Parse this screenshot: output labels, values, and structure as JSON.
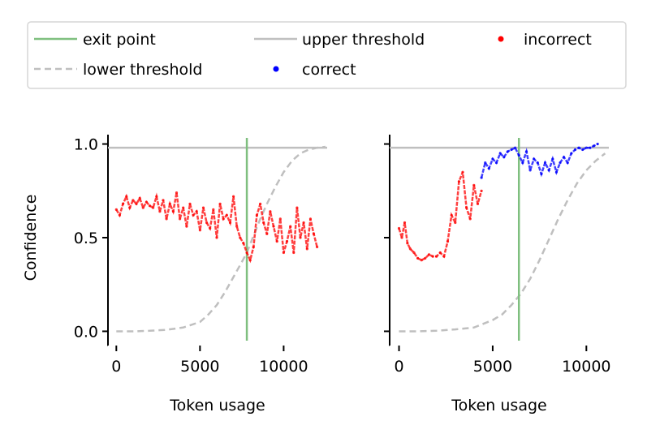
{
  "legend": {
    "entries": [
      {
        "key": "exit",
        "label": "exit point",
        "color": "#7fbf7f",
        "style": "line-solid"
      },
      {
        "key": "upper",
        "label": "upper threshold",
        "color": "#bfbfbf",
        "style": "line-solid"
      },
      {
        "key": "incorrect",
        "label": "incorrect",
        "color": "#ff0000",
        "style": "dot"
      },
      {
        "key": "lower",
        "label": "lower threshold",
        "color": "#bfbfbf",
        "style": "line-dashed"
      },
      {
        "key": "correct",
        "label": "correct",
        "color": "#0000ff",
        "style": "dot"
      }
    ],
    "placement": "top-center"
  },
  "chart_data": [
    {
      "type": "line",
      "xlabel": "Token usage",
      "ylabel": "Confidence",
      "xlim": [
        -500,
        12600
      ],
      "ylim": [
        -0.05,
        1.05
      ],
      "xticks": [
        0,
        5000,
        10000
      ],
      "yticks": [
        0.0,
        0.5,
        1.0
      ],
      "ytick_labels": [
        "0.0",
        "0.5",
        "1.0"
      ],
      "exit_point_x": 7800,
      "upper_threshold": 0.98,
      "lower_threshold_curve": {
        "x": [
          0,
          1000,
          2000,
          3000,
          4000,
          5000,
          5500,
          6000,
          6500,
          7000,
          7500,
          7800,
          8200,
          8600,
          9000,
          9500,
          10000,
          10500,
          11000,
          11500,
          12000,
          12500
        ],
        "y": [
          0,
          0.0,
          0.003,
          0.008,
          0.02,
          0.05,
          0.09,
          0.14,
          0.21,
          0.29,
          0.37,
          0.42,
          0.51,
          0.6,
          0.68,
          0.77,
          0.85,
          0.91,
          0.95,
          0.97,
          0.98,
          0.985
        ]
      },
      "series": [
        {
          "color": "#ff0000",
          "x": [
            0,
            200,
            400,
            600,
            800,
            1000,
            1200,
            1400,
            1600,
            1800,
            2000,
            2200,
            2400,
            2600,
            2800,
            3000,
            3200,
            3400,
            3600,
            3800,
            4000,
            4200,
            4400,
            4600,
            4800,
            5000,
            5200,
            5400,
            5600,
            5800,
            6000,
            6200,
            6400,
            6600,
            6800,
            7000,
            7200,
            7400,
            7600,
            7800,
            8000,
            8200,
            8400,
            8600,
            8800,
            9000,
            9200,
            9400,
            9600,
            9800,
            10000,
            10200,
            10400,
            10600,
            10800,
            11000,
            11200,
            11400,
            11600,
            11800,
            12000
          ],
          "y": [
            0.65,
            0.62,
            0.68,
            0.72,
            0.66,
            0.7,
            0.68,
            0.71,
            0.66,
            0.69,
            0.67,
            0.66,
            0.72,
            0.64,
            0.7,
            0.6,
            0.68,
            0.64,
            0.74,
            0.6,
            0.66,
            0.56,
            0.68,
            0.62,
            0.64,
            0.54,
            0.66,
            0.58,
            0.55,
            0.65,
            0.5,
            0.68,
            0.6,
            0.62,
            0.58,
            0.72,
            0.56,
            0.5,
            0.47,
            0.42,
            0.38,
            0.45,
            0.62,
            0.68,
            0.58,
            0.52,
            0.64,
            0.56,
            0.48,
            0.6,
            0.42,
            0.48,
            0.56,
            0.42,
            0.66,
            0.5,
            0.58,
            0.44,
            0.6,
            0.52,
            0.45
          ]
        }
      ]
    },
    {
      "type": "line",
      "xlabel": "Token usage",
      "ylabel": "",
      "xlim": [
        -500,
        11200
      ],
      "ylim": [
        -0.05,
        1.05
      ],
      "xticks": [
        0,
        5000,
        10000
      ],
      "yticks": [
        0.0,
        0.5,
        1.0
      ],
      "ytick_labels": [
        "",
        "",
        ""
      ],
      "exit_point_x": 6400,
      "upper_threshold": 0.98,
      "lower_threshold_curve": {
        "x": [
          0,
          1000,
          2000,
          3000,
          4000,
          4500,
          5000,
          5500,
          6000,
          6500,
          7000,
          7500,
          8000,
          8500,
          9000,
          9500,
          10000,
          10500,
          11000
        ],
        "y": [
          0,
          0.0,
          0.003,
          0.01,
          0.02,
          0.04,
          0.06,
          0.09,
          0.14,
          0.2,
          0.28,
          0.38,
          0.49,
          0.6,
          0.7,
          0.79,
          0.86,
          0.91,
          0.95
        ]
      },
      "series": [
        {
          "color": "#ff0000",
          "x": [
            0,
            150,
            300,
            450,
            600,
            800,
            1000,
            1200,
            1400,
            1600,
            1800,
            2000,
            2200,
            2400,
            2600,
            2800,
            3000,
            3200,
            3400,
            3600,
            3800,
            4000,
            4200,
            4400
          ],
          "y": [
            0.55,
            0.5,
            0.58,
            0.47,
            0.44,
            0.42,
            0.39,
            0.38,
            0.39,
            0.41,
            0.4,
            0.4,
            0.42,
            0.4,
            0.48,
            0.62,
            0.58,
            0.8,
            0.85,
            0.66,
            0.6,
            0.78,
            0.68,
            0.75
          ]
        },
        {
          "color": "#0000ff",
          "x": [
            4400,
            4600,
            4800,
            5000,
            5200,
            5400,
            5600,
            5800,
            6000,
            6200,
            6400,
            6600,
            6800,
            7000,
            7200,
            7400,
            7600,
            7800,
            8000,
            8200,
            8400,
            8600,
            8800,
            9000,
            9200,
            9400,
            9600,
            9800,
            10000,
            10200,
            10400,
            10600
          ],
          "y": [
            0.82,
            0.9,
            0.87,
            0.92,
            0.9,
            0.95,
            0.93,
            0.96,
            0.97,
            0.98,
            0.94,
            0.9,
            0.96,
            0.86,
            0.92,
            0.9,
            0.84,
            0.9,
            0.86,
            0.92,
            0.85,
            0.9,
            0.93,
            0.9,
            0.95,
            0.97,
            0.98,
            0.97,
            0.98,
            0.98,
            0.99,
            1.0
          ]
        }
      ]
    }
  ]
}
